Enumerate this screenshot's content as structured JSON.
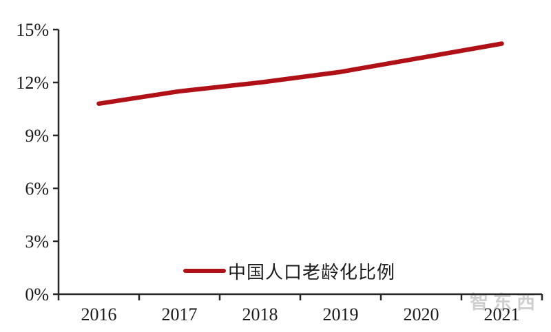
{
  "chart_data": {
    "type": "line",
    "title": "",
    "xlabel": "",
    "ylabel": "",
    "categories": [
      "2016",
      "2017",
      "2018",
      "2019",
      "2020",
      "2021"
    ],
    "series": [
      {
        "name": "中国人口老龄化比例",
        "color": "#b01116",
        "values": [
          10.8,
          11.5,
          12.0,
          12.6,
          13.4,
          14.2
        ]
      }
    ],
    "ylim": [
      0,
      15
    ],
    "ytick_step": 3,
    "yticks": [
      "0%",
      "3%",
      "6%",
      "9%",
      "12%",
      "15%"
    ],
    "grid": false,
    "legend_position": "inside-bottom-center"
  },
  "watermark": {
    "text": "智东西",
    "subtext": "· · · · · ·"
  },
  "colors": {
    "axis": "#262626",
    "tick_label": "#1a1a1a",
    "series_line": "#b01116",
    "watermark": "#c4c4c4",
    "background": "#ffffff"
  }
}
